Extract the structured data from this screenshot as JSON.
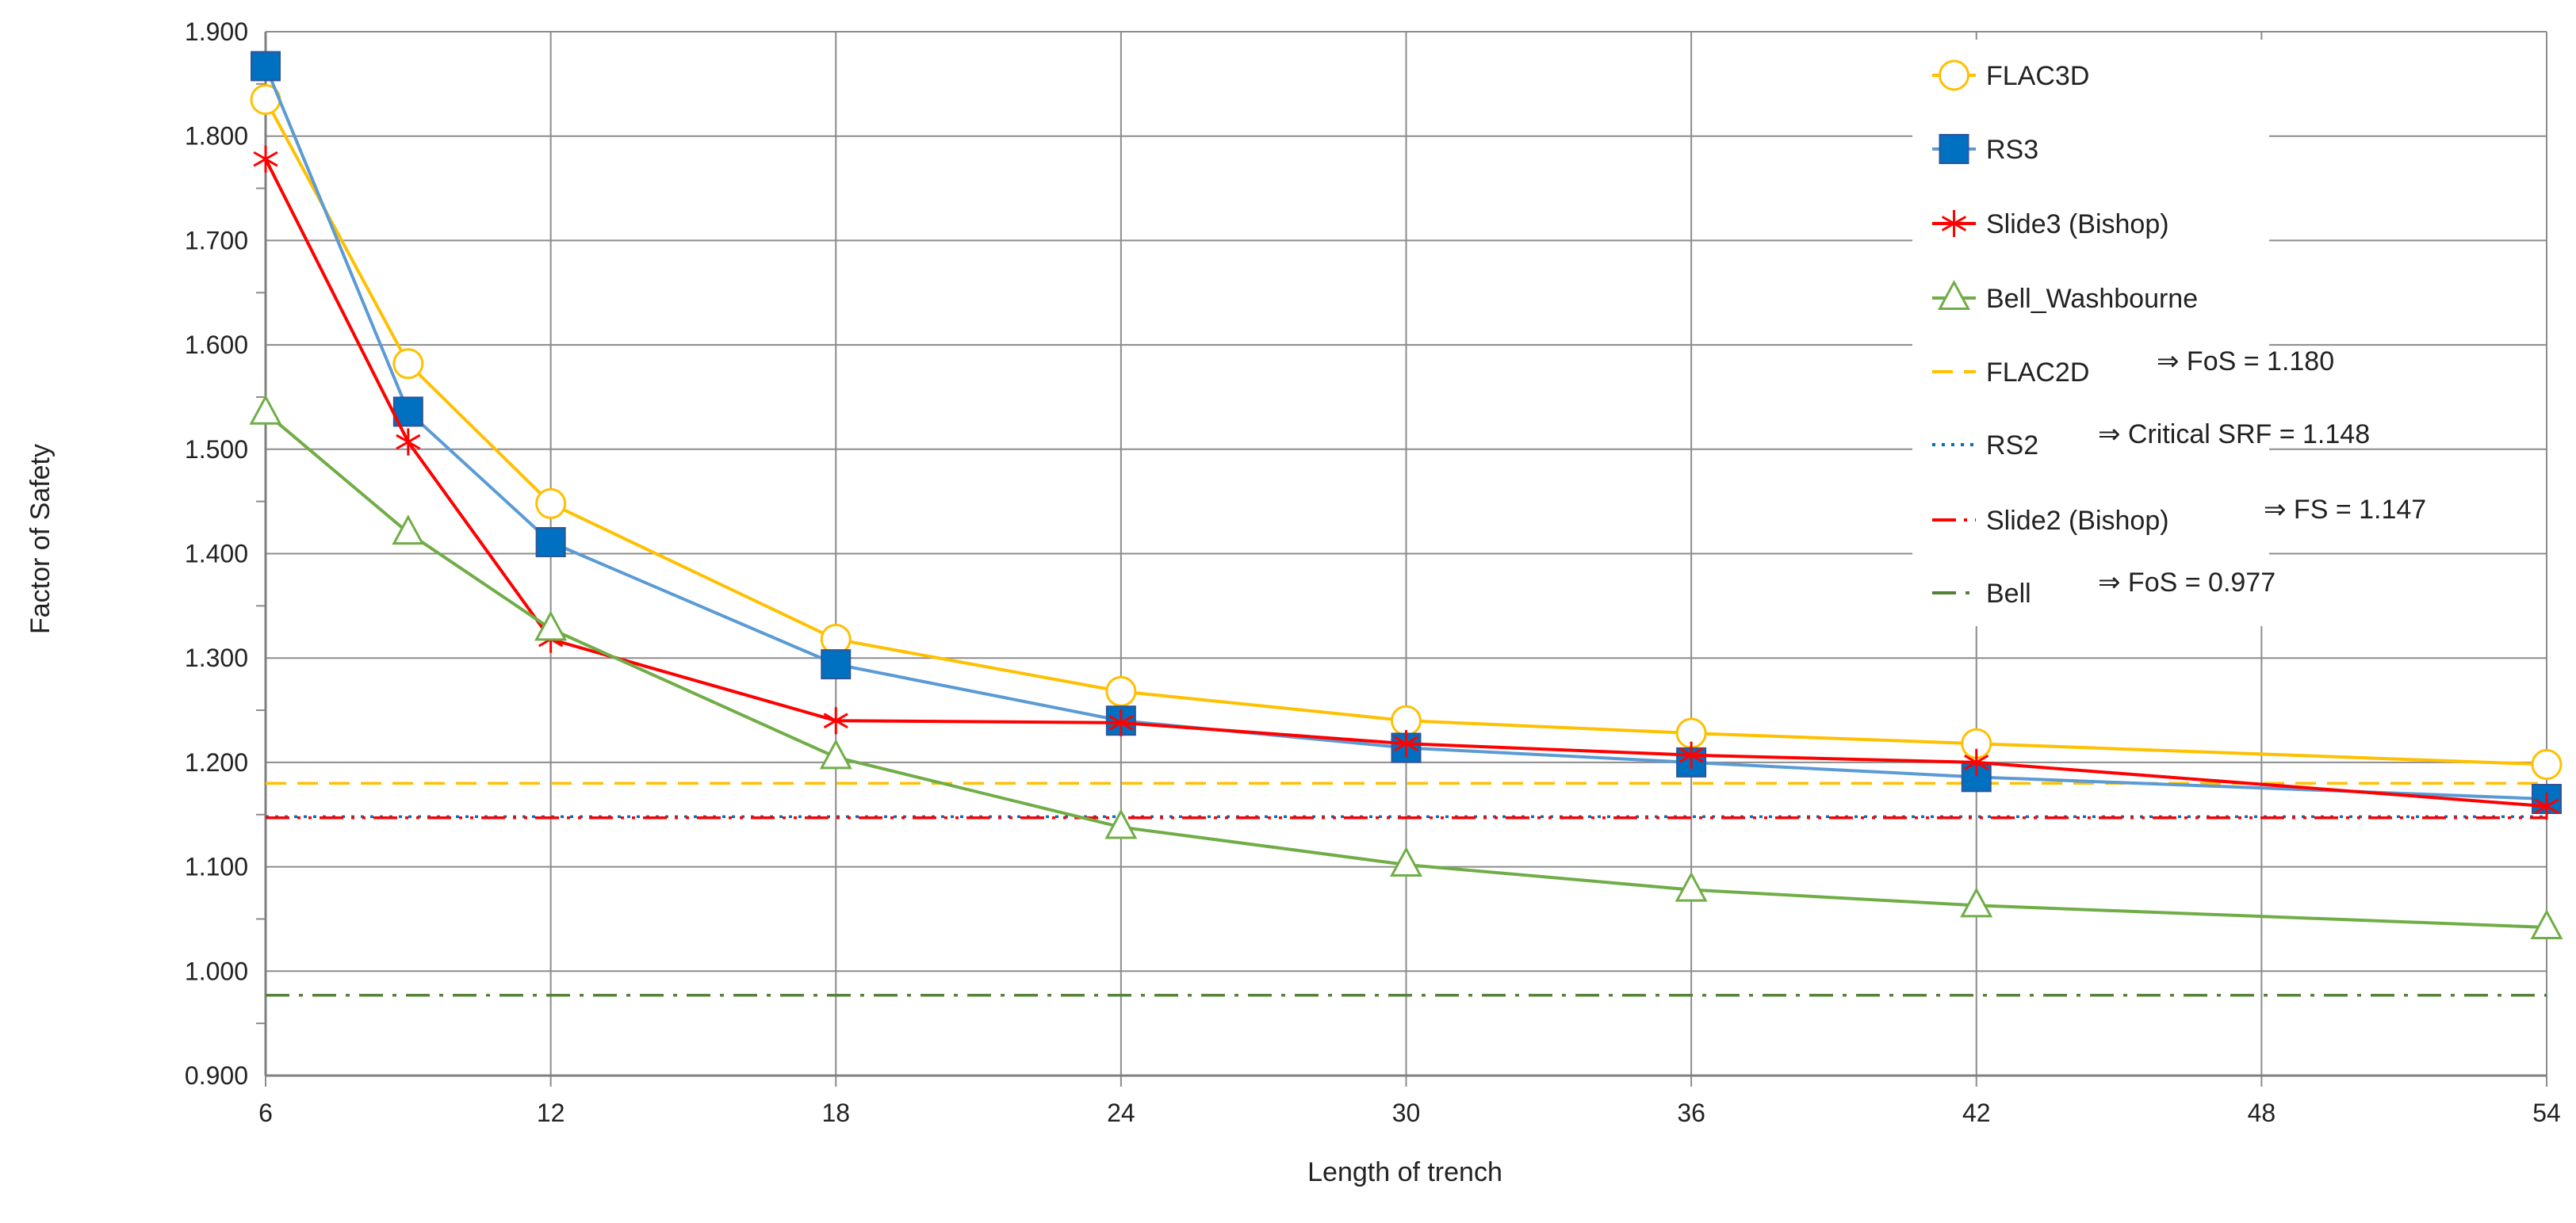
{
  "chart_data": {
    "type": "line",
    "title": "",
    "xlabel": "Length of trench",
    "ylabel": "Factor of Safety",
    "xlim": [
      6,
      54
    ],
    "ylim": [
      0.9,
      1.9
    ],
    "x_ticks": [
      6,
      12,
      18,
      24,
      30,
      36,
      42,
      48,
      54
    ],
    "x_tick_labels": [
      "6",
      "12",
      "18",
      "24",
      "30",
      "36",
      "42",
      "48",
      "54"
    ],
    "y_ticks": [
      0.9,
      1.0,
      1.1,
      1.2,
      1.3,
      1.4,
      1.5,
      1.6,
      1.7,
      1.8,
      1.9
    ],
    "y_tick_labels": [
      "0.900",
      "1.000",
      "1.100",
      "1.200",
      "1.300",
      "1.400",
      "1.500",
      "1.600",
      "1.700",
      "1.800",
      "1.900"
    ],
    "grid": true,
    "legend_position": "top-right",
    "series": [
      {
        "name": "FLAC3D",
        "color": "#FFC000",
        "marker": "circle-open",
        "x": [
          6,
          9,
          12,
          18,
          24,
          30,
          36,
          42,
          54
        ],
        "values": [
          1.835,
          1.582,
          1.448,
          1.318,
          1.268,
          1.24,
          1.228,
          1.218,
          1.198
        ]
      },
      {
        "name": "RS3",
        "color": "#5B9BD5",
        "marker": "square-filled",
        "marker_color": "#0070C0",
        "x": [
          6,
          9,
          12,
          18,
          24,
          30,
          36,
          42,
          54
        ],
        "values": [
          1.867,
          1.536,
          1.411,
          1.294,
          1.24,
          1.214,
          1.2,
          1.186,
          1.165
        ]
      },
      {
        "name": "Slide3 (Bishop)",
        "color": "#FF0000",
        "marker": "asterisk",
        "x": [
          6,
          9,
          12,
          18,
          24,
          30,
          36,
          42,
          54
        ],
        "values": [
          1.778,
          1.507,
          1.318,
          1.24,
          1.238,
          1.218,
          1.207,
          1.2,
          1.158
        ]
      },
      {
        "name": "Bell_Washbourne",
        "color": "#70AD47",
        "marker": "triangle-open",
        "x": [
          6,
          9,
          12,
          18,
          24,
          30,
          36,
          42,
          54
        ],
        "values": [
          1.535,
          1.42,
          1.328,
          1.205,
          1.138,
          1.102,
          1.078,
          1.063,
          1.042
        ]
      }
    ],
    "reference_lines": [
      {
        "name": "FLAC2D",
        "annotation": "⇒ FoS = 1.180",
        "value": 1.18,
        "color": "#FFC000",
        "style": "dashed"
      },
      {
        "name": "RS2",
        "annotation": "⇒ Critical SRF = 1.148",
        "value": 1.148,
        "color": "#0070C0",
        "style": "dotted"
      },
      {
        "name": "Slide2 (Bishop)",
        "annotation": "⇒ FS = 1.147",
        "value": 1.147,
        "color": "#FF0000",
        "style": "dash-dot-dot"
      },
      {
        "name": "Bell",
        "annotation": "⇒ FoS = 0.977",
        "value": 0.977,
        "color": "#548235",
        "style": "dash-dot"
      }
    ]
  }
}
